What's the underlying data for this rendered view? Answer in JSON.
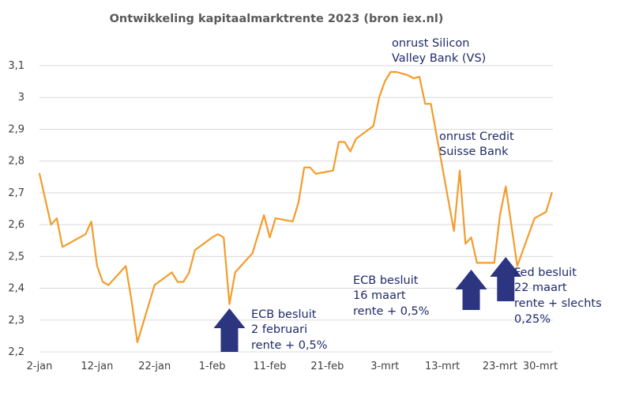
{
  "chart_data": {
    "type": "line",
    "title": "Ontwikkeling kapitaalmarktrente 2023 (bron iex.nl)",
    "xlabel": "",
    "ylabel": "",
    "ylim": [
      2.2,
      3.1
    ],
    "grid": true,
    "yticks": [
      "2,2",
      "2,3",
      "2,4",
      "2,5",
      "2,6",
      "2,7",
      "2,8",
      "2,9",
      "3",
      "3,1"
    ],
    "xticks": [
      {
        "label": "2-jan",
        "day": 1
      },
      {
        "label": "12-jan",
        "day": 11
      },
      {
        "label": "22-jan",
        "day": 21
      },
      {
        "label": "1-feb",
        "day": 31
      },
      {
        "label": "11-feb",
        "day": 41
      },
      {
        "label": "21-feb",
        "day": 51
      },
      {
        "label": "3-mrt",
        "day": 61
      },
      {
        "label": "13-mrt",
        "day": 71
      },
      {
        "label": "23-mrt",
        "day": 81
      },
      {
        "label": "30-mrt",
        "day": 88
      }
    ],
    "series": [
      {
        "color": "#f39c2b",
        "points": [
          [
            1,
            2.76
          ],
          [
            3,
            2.6
          ],
          [
            4,
            2.62
          ],
          [
            5,
            2.53
          ],
          [
            7,
            2.55
          ],
          [
            9,
            2.57
          ],
          [
            10,
            2.61
          ],
          [
            11,
            2.47
          ],
          [
            12,
            2.42
          ],
          [
            13,
            2.41
          ],
          [
            16,
            2.47
          ],
          [
            17,
            2.36
          ],
          [
            18,
            2.23
          ],
          [
            21,
            2.41
          ],
          [
            24,
            2.45
          ],
          [
            25,
            2.42
          ],
          [
            26,
            2.42
          ],
          [
            27,
            2.45
          ],
          [
            28,
            2.52
          ],
          [
            31,
            2.56
          ],
          [
            32,
            2.57
          ],
          [
            33,
            2.56
          ],
          [
            34,
            2.35
          ],
          [
            35,
            2.45
          ],
          [
            38,
            2.51
          ],
          [
            40,
            2.63
          ],
          [
            41,
            2.56
          ],
          [
            42,
            2.62
          ],
          [
            45,
            2.61
          ],
          [
            46,
            2.67
          ],
          [
            47,
            2.78
          ],
          [
            48,
            2.78
          ],
          [
            49,
            2.76
          ],
          [
            52,
            2.77
          ],
          [
            53,
            2.86
          ],
          [
            54,
            2.86
          ],
          [
            55,
            2.83
          ],
          [
            56,
            2.87
          ],
          [
            59,
            2.91
          ],
          [
            60,
            3.0
          ],
          [
            61,
            3.05
          ],
          [
            62,
            3.08
          ],
          [
            63,
            3.08
          ],
          [
            65,
            3.07
          ],
          [
            66,
            3.06
          ],
          [
            67,
            3.065
          ],
          [
            68,
            2.98
          ],
          [
            69,
            2.98
          ],
          [
            73,
            2.58
          ],
          [
            74,
            2.77
          ],
          [
            75,
            2.54
          ],
          [
            76,
            2.56
          ],
          [
            77,
            2.48
          ],
          [
            80,
            2.48
          ],
          [
            81,
            2.63
          ],
          [
            82,
            2.72
          ],
          [
            84,
            2.47
          ],
          [
            87,
            2.62
          ],
          [
            89,
            2.64
          ],
          [
            90,
            2.7
          ]
        ]
      }
    ],
    "annotations": [
      {
        "lines": [
          "onrust Silicon",
          "Valley Bank (VS)"
        ]
      },
      {
        "lines": [
          "onrust Credit",
          "Suisse Bank"
        ]
      },
      {
        "lines": [
          "ECB besluit",
          "2 februari",
          "rente + 0,5%"
        ],
        "arrow_day": 34
      },
      {
        "lines": [
          "ECB besluit",
          "16 maart",
          "rente + 0,5%"
        ],
        "arrow_day": 76
      },
      {
        "lines": [
          "Fed besluit",
          "22 maart",
          "rente + slechts",
          "0,25%"
        ],
        "arrow_day": 82
      }
    ],
    "arrow_color": "#2b3580"
  }
}
